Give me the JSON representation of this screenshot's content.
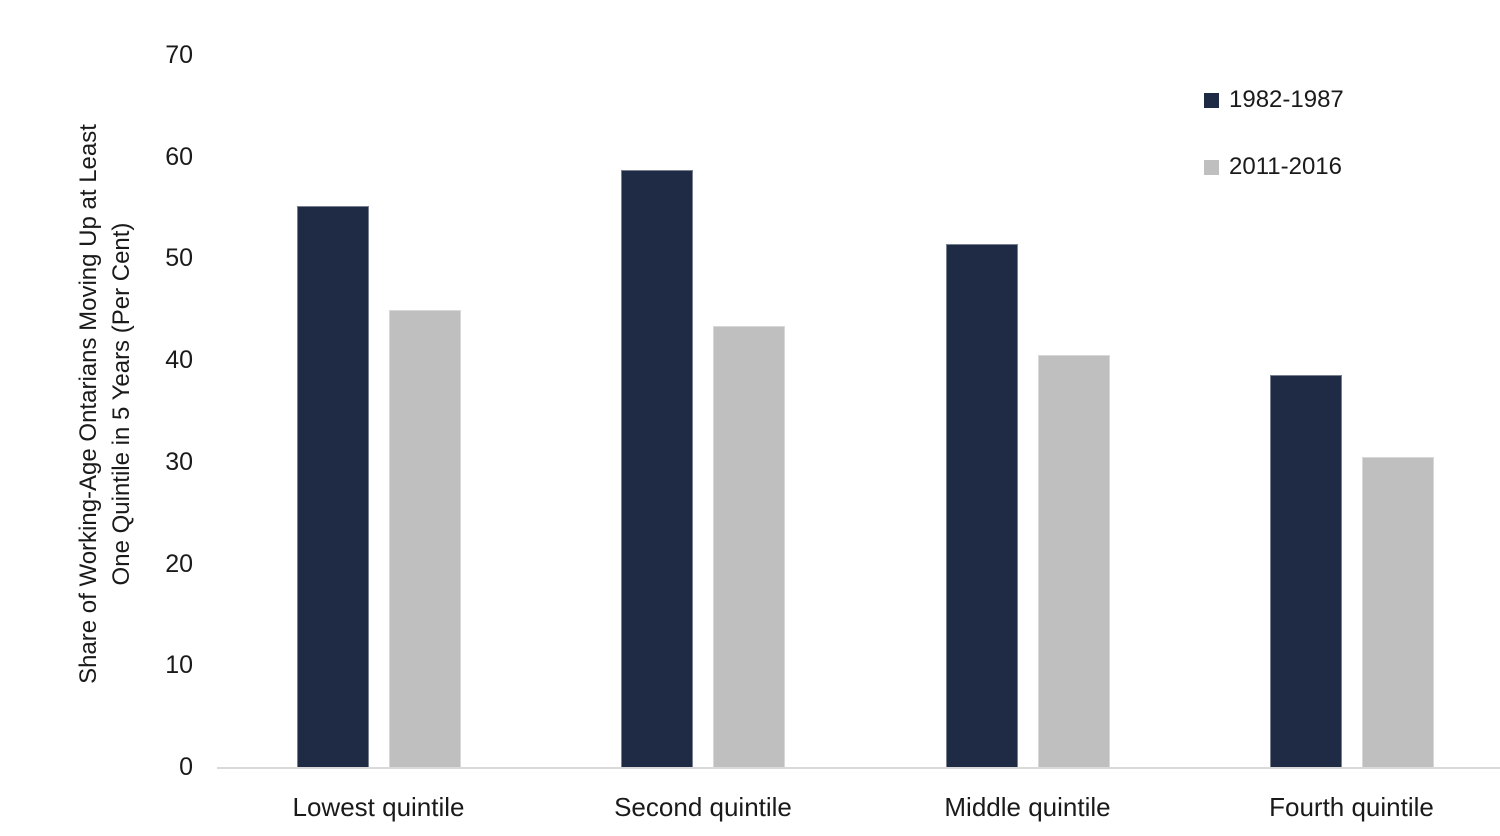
{
  "chart_data": {
    "type": "bar",
    "categories": [
      "Lowest quintile",
      "Second quintile",
      "Middle quintile",
      "Fourth quintile"
    ],
    "series": [
      {
        "name": "1982-1987",
        "color": "#1F2B45",
        "values": [
          55.3,
          58.8,
          51.5,
          38.6
        ]
      },
      {
        "name": "2011-2016",
        "color": "#BFBFBF",
        "values": [
          45.0,
          43.5,
          40.6,
          30.6
        ]
      }
    ],
    "title": "",
    "xlabel": "",
    "ylabel_line1": "Share of Working-Age Ontarians Moving Up at Least",
    "ylabel_line2": "One Quintile in 5 Years (Per Cent)",
    "yticks": [
      0,
      10,
      20,
      30,
      40,
      50,
      60,
      70
    ],
    "ylim": [
      0,
      70
    ],
    "grid": false,
    "legend_position": "top-right",
    "axis_line_color": "#D9D9D9",
    "text_color": "#1A1A1A",
    "background_color": "#FFFFFF"
  }
}
